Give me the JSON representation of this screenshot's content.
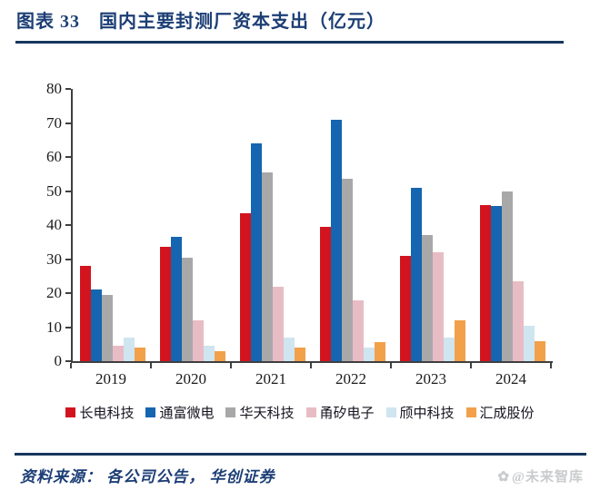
{
  "header": {
    "title": "图表 33　国内主要封测厂资本支出（亿元）"
  },
  "chart_data": {
    "type": "bar",
    "title": "国内主要封测厂资本支出（亿元）",
    "categories": [
      "2019",
      "2020",
      "2021",
      "2022",
      "2023",
      "2024"
    ],
    "series": [
      {
        "name": "长电科技",
        "color": "#d2141e",
        "values": [
          28,
          33.5,
          43.5,
          39.5,
          31,
          46
        ]
      },
      {
        "name": "通富微电",
        "color": "#1565b0",
        "values": [
          21,
          36.5,
          64,
          71,
          51,
          45.5
        ]
      },
      {
        "name": "华天科技",
        "color": "#a8a8a8",
        "values": [
          19.5,
          30.5,
          55.5,
          53.5,
          37,
          50
        ]
      },
      {
        "name": "甬矽电子",
        "color": "#e8bcc4",
        "values": [
          4.5,
          12,
          22,
          18,
          32,
          23.5
        ]
      },
      {
        "name": "颀中科技",
        "color": "#cfe5f0",
        "values": [
          7,
          4.5,
          7,
          4,
          7,
          10.5
        ]
      },
      {
        "name": "汇成股份",
        "color": "#f2a04a",
        "values": [
          4,
          3,
          4,
          5.5,
          12,
          6
        ]
      }
    ],
    "xlabel": "",
    "ylabel": "",
    "ylim": [
      0,
      80
    ],
    "ytick_step": 10,
    "grid": false,
    "legend_position": "bottom"
  },
  "footer": {
    "source": "资料来源： 各公司公告， 华创证券",
    "watermark_icon": "✿",
    "watermark": "@未来智库"
  }
}
